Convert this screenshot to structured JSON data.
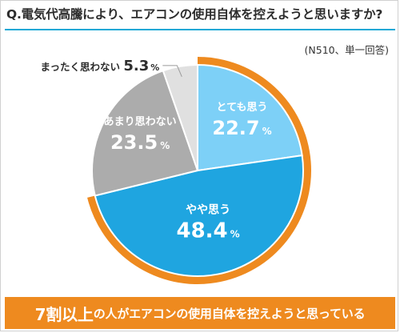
{
  "question": "Q.電気代高騰により、エアコンの使用自体を控えようと思いますか?",
  "note": "(N510、単一回答)",
  "chart_data": {
    "type": "pie",
    "unit": "%",
    "slices": [
      {
        "label": "とても思う",
        "value": 22.7,
        "color": "#7dd0f7"
      },
      {
        "label": "やや思う",
        "value": 48.4,
        "color": "#1fa5e0"
      },
      {
        "label": "あまり思わない",
        "value": 23.5,
        "color": "#acacac"
      },
      {
        "label": "まったく思わない",
        "value": 5.3,
        "color": "#e0e0e0"
      }
    ],
    "highlight_color": "#ee8a1f"
  },
  "banner": {
    "part1": "7割以上",
    "part2": "の人がエアコンの使用自体を控えようと思っている"
  }
}
